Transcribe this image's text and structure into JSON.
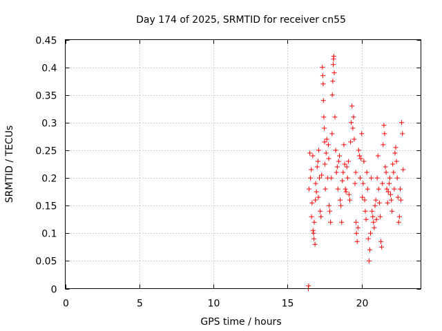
{
  "chart_data": {
    "type": "scatter",
    "title": "Day 174 of 2025, SRMTID for receiver cn55",
    "xlabel": "GPS time / hours",
    "ylabel": "SRMTID / TECUs",
    "xlim": [
      0,
      24
    ],
    "ylim": [
      0,
      0.45
    ],
    "x_ticks": [
      0,
      5,
      10,
      15,
      20
    ],
    "x_tick_labels": [
      "0",
      "5",
      "10",
      "15",
      "20"
    ],
    "y_ticks": [
      0,
      0.05,
      0.1,
      0.15,
      0.2,
      0.25,
      0.3,
      0.35,
      0.4,
      0.45
    ],
    "y_tick_labels": [
      "0",
      "0.05",
      "0.1",
      "0.15",
      "0.2",
      "0.25",
      "0.3",
      "0.35",
      "0.4",
      "0.45"
    ],
    "grid": true,
    "marker": "plus",
    "color": "#ff0000",
    "series": [
      {
        "name": "SRMTID",
        "points": [
          [
            16.4,
            0.0
          ],
          [
            16.42,
            0.005
          ],
          [
            16.45,
            0.18
          ],
          [
            16.5,
            0.245
          ],
          [
            16.55,
            0.2
          ],
          [
            16.6,
            0.215
          ],
          [
            16.62,
            0.13
          ],
          [
            16.65,
            0.155
          ],
          [
            16.7,
            0.24
          ],
          [
            16.72,
            0.105
          ],
          [
            16.75,
            0.1
          ],
          [
            16.78,
            0.09
          ],
          [
            16.8,
            0.12
          ],
          [
            16.85,
            0.08
          ],
          [
            16.88,
            0.16
          ],
          [
            16.9,
            0.19
          ],
          [
            16.95,
            0.175
          ],
          [
            17.0,
            0.22
          ],
          [
            17.05,
            0.23
          ],
          [
            17.08,
            0.165
          ],
          [
            17.1,
            0.25
          ],
          [
            17.15,
            0.2
          ],
          [
            17.2,
            0.14
          ],
          [
            17.25,
            0.13
          ],
          [
            17.3,
            0.205
          ],
          [
            17.35,
            0.4
          ],
          [
            17.38,
            0.385
          ],
          [
            17.4,
            0.37
          ],
          [
            17.42,
            0.34
          ],
          [
            17.45,
            0.31
          ],
          [
            17.48,
            0.29
          ],
          [
            17.5,
            0.265
          ],
          [
            17.52,
            0.225
          ],
          [
            17.55,
            0.18
          ],
          [
            17.6,
            0.245
          ],
          [
            17.65,
            0.27
          ],
          [
            17.7,
            0.2
          ],
          [
            17.75,
            0.26
          ],
          [
            17.78,
            0.235
          ],
          [
            17.8,
            0.15
          ],
          [
            17.85,
            0.14
          ],
          [
            17.9,
            0.12
          ],
          [
            17.95,
            0.2
          ],
          [
            18.0,
            0.28
          ],
          [
            18.02,
            0.35
          ],
          [
            18.05,
            0.375
          ],
          [
            18.08,
            0.405
          ],
          [
            18.1,
            0.415
          ],
          [
            18.12,
            0.42
          ],
          [
            18.15,
            0.39
          ],
          [
            18.2,
            0.31
          ],
          [
            18.25,
            0.25
          ],
          [
            18.3,
            0.21
          ],
          [
            18.35,
            0.22
          ],
          [
            18.4,
            0.18
          ],
          [
            18.45,
            0.23
          ],
          [
            18.5,
            0.24
          ],
          [
            18.55,
            0.16
          ],
          [
            18.6,
            0.15
          ],
          [
            18.65,
            0.12
          ],
          [
            18.7,
            0.195
          ],
          [
            18.75,
            0.21
          ],
          [
            18.8,
            0.26
          ],
          [
            18.85,
            0.225
          ],
          [
            18.9,
            0.18
          ],
          [
            18.95,
            0.175
          ],
          [
            19.0,
            0.22
          ],
          [
            19.05,
            0.2
          ],
          [
            19.1,
            0.23
          ],
          [
            19.15,
            0.17
          ],
          [
            19.2,
            0.16
          ],
          [
            19.25,
            0.265
          ],
          [
            19.3,
            0.3
          ],
          [
            19.35,
            0.33
          ],
          [
            19.4,
            0.29
          ],
          [
            19.45,
            0.31
          ],
          [
            19.5,
            0.27
          ],
          [
            19.55,
            0.19
          ],
          [
            19.6,
            0.21
          ],
          [
            19.62,
            0.12
          ],
          [
            19.65,
            0.1
          ],
          [
            19.7,
            0.085
          ],
          [
            19.75,
            0.11
          ],
          [
            19.8,
            0.25
          ],
          [
            19.85,
            0.24
          ],
          [
            19.9,
            0.2
          ],
          [
            19.95,
            0.235
          ],
          [
            20.0,
            0.28
          ],
          [
            20.05,
            0.165
          ],
          [
            20.1,
            0.19
          ],
          [
            20.15,
            0.23
          ],
          [
            20.2,
            0.16
          ],
          [
            20.25,
            0.14
          ],
          [
            20.3,
            0.125
          ],
          [
            20.35,
            0.21
          ],
          [
            20.4,
            0.18
          ],
          [
            20.45,
            0.09
          ],
          [
            20.5,
            0.05
          ],
          [
            20.55,
            0.07
          ],
          [
            20.6,
            0.1
          ],
          [
            20.65,
            0.2
          ],
          [
            20.7,
            0.14
          ],
          [
            20.75,
            0.13
          ],
          [
            20.8,
            0.12
          ],
          [
            20.85,
            0.11
          ],
          [
            20.9,
            0.15
          ],
          [
            20.95,
            0.16
          ],
          [
            21.0,
            0.125
          ],
          [
            21.05,
            0.2
          ],
          [
            21.1,
            0.24
          ],
          [
            21.15,
            0.18
          ],
          [
            21.2,
            0.155
          ],
          [
            21.25,
            0.13
          ],
          [
            21.3,
            0.085
          ],
          [
            21.35,
            0.075
          ],
          [
            21.4,
            0.19
          ],
          [
            21.45,
            0.26
          ],
          [
            21.5,
            0.295
          ],
          [
            21.55,
            0.28
          ],
          [
            21.6,
            0.22
          ],
          [
            21.65,
            0.21
          ],
          [
            21.7,
            0.18
          ],
          [
            21.75,
            0.155
          ],
          [
            21.8,
            0.175
          ],
          [
            21.85,
            0.19
          ],
          [
            21.9,
            0.2
          ],
          [
            21.95,
            0.17
          ],
          [
            22.0,
            0.16
          ],
          [
            22.05,
            0.14
          ],
          [
            22.1,
            0.225
          ],
          [
            22.15,
            0.21
          ],
          [
            22.2,
            0.18
          ],
          [
            22.25,
            0.245
          ],
          [
            22.3,
            0.255
          ],
          [
            22.35,
            0.23
          ],
          [
            22.4,
            0.2
          ],
          [
            22.45,
            0.165
          ],
          [
            22.5,
            0.12
          ],
          [
            22.55,
            0.13
          ],
          [
            22.6,
            0.18
          ],
          [
            22.65,
            0.16
          ],
          [
            22.7,
            0.3
          ],
          [
            22.75,
            0.28
          ],
          [
            22.8,
            0.215
          ]
        ]
      }
    ]
  }
}
